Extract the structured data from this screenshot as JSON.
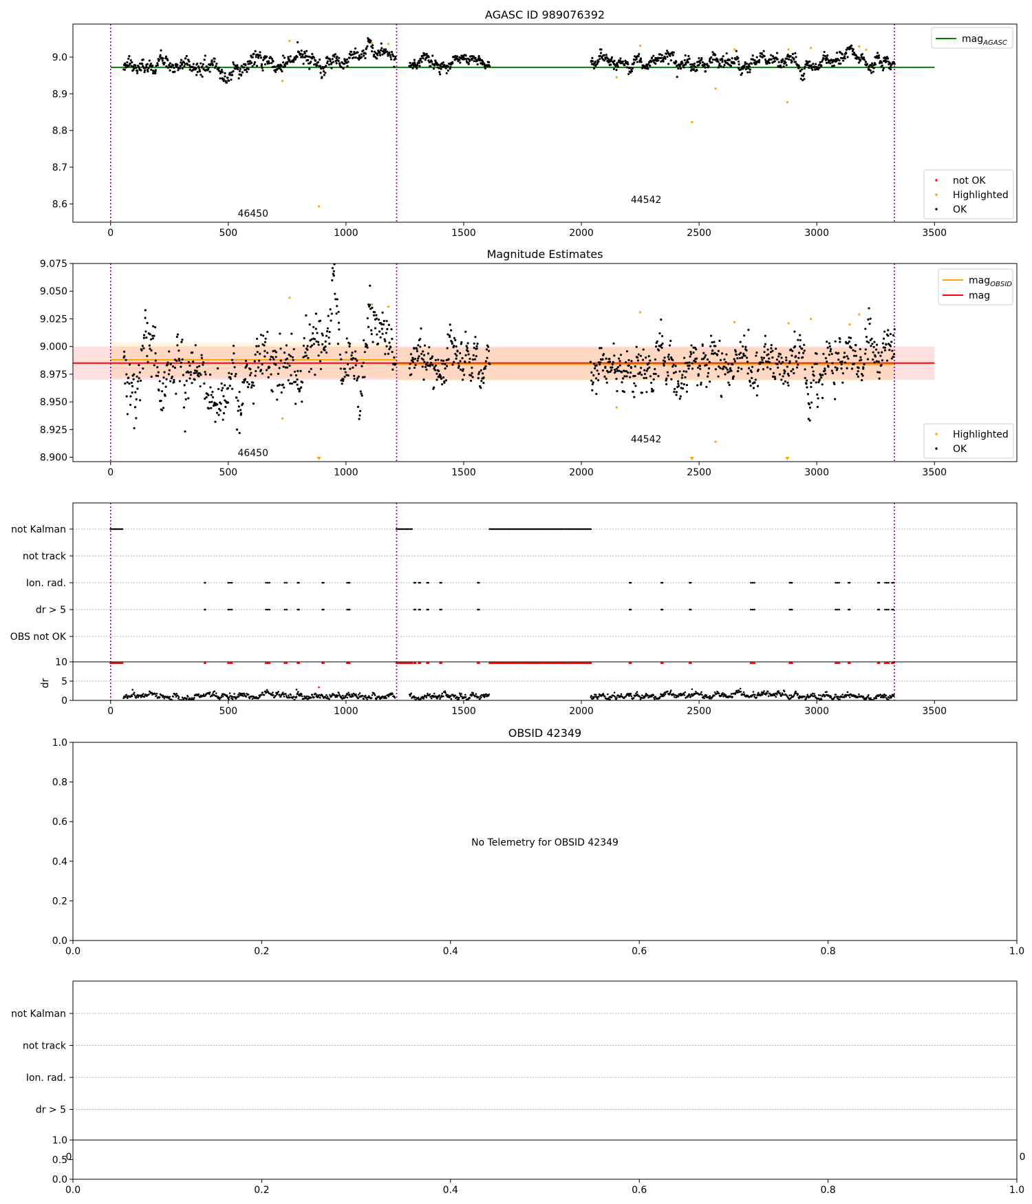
{
  "figure": {
    "obsid_dividers_x": [
      0,
      1215,
      3330
    ],
    "obsid_labels": [
      {
        "text": "46450",
        "x": 605
      },
      {
        "text": "44542",
        "x": 2275
      }
    ]
  },
  "panels": {
    "agasc": {
      "title": "AGASC ID 989076392",
      "legend_lines": [
        {
          "label_main": "mag",
          "label_sub": "AGASC",
          "color": "#008000"
        }
      ],
      "legend_markers": [
        {
          "label": "not OK",
          "color": "#ff0000"
        },
        {
          "label": "Highlighted",
          "color": "#ffa500"
        },
        {
          "label": "OK",
          "color": "#000000"
        }
      ]
    },
    "estimates": {
      "title": "Magnitude Estimates",
      "legend_lines": [
        {
          "label_main": "mag",
          "label_sub": "OBSID",
          "color": "#ffa500"
        },
        {
          "label_main": "mag",
          "label_sub": "",
          "color": "#ff0000"
        }
      ],
      "legend_markers": [
        {
          "label": "Highlighted",
          "color": "#ffa500"
        },
        {
          "label": "OK",
          "color": "#000000"
        }
      ]
    },
    "flags": {
      "row_labels": [
        "not Kalman",
        "not track",
        "Ion. rad.",
        "dr > 5",
        "OBS not OK"
      ]
    },
    "dr": {
      "ylabel": "dr",
      "yticks": [
        "0",
        "5",
        "10"
      ]
    },
    "obsid": {
      "title": "OBSID 42349",
      "message": "No Telemetry for OBSID 42349"
    },
    "flags2": {
      "row_labels": [
        "not Kalman",
        "not track",
        "Ion. rad.",
        "dr > 5"
      ]
    },
    "dr2": {
      "yticks": [
        "0.0",
        "0.5",
        "1.0"
      ],
      "overflow_labels": [
        "0",
        "0"
      ]
    }
  },
  "chart_data": [
    {
      "type": "scatter",
      "title": "AGASC ID 989076392",
      "xlim": [
        -160,
        3850
      ],
      "ylim": [
        8.55,
        9.09
      ],
      "xticks": [
        0,
        500,
        1000,
        1500,
        2000,
        2500,
        3000,
        3500
      ],
      "yticks": [
        8.6,
        8.7,
        8.8,
        8.9,
        9.0
      ],
      "reference_lines": [
        {
          "name": "mag_AGASC",
          "y": 8.972,
          "x": [
            0,
            3500
          ],
          "color": "#008000"
        }
      ],
      "segments": [
        {
          "x": [
            55,
            1210
          ],
          "base": 8.985,
          "amp": 0.022,
          "n": 520,
          "trend": 0.025
        },
        {
          "x": [
            1270,
            1610
          ],
          "base": 8.985,
          "amp": 0.015,
          "n": 170,
          "trend": -0.005
        },
        {
          "x": [
            2040,
            3330
          ],
          "base": 8.985,
          "amp": 0.018,
          "n": 600,
          "trend": 0.005
        }
      ],
      "highlighted": [
        {
          "x": 730,
          "y": 8.935
        },
        {
          "x": 760,
          "y": 9.044
        },
        {
          "x": 885,
          "y": 8.593
        },
        {
          "x": 1110,
          "y": 9.038
        },
        {
          "x": 1180,
          "y": 9.036
        },
        {
          "x": 2150,
          "y": 8.945
        },
        {
          "x": 2250,
          "y": 9.031
        },
        {
          "x": 2470,
          "y": 8.823
        },
        {
          "x": 2570,
          "y": 8.914
        },
        {
          "x": 2650,
          "y": 9.021
        },
        {
          "x": 2875,
          "y": 8.877
        },
        {
          "x": 2880,
          "y": 9.021
        },
        {
          "x": 2975,
          "y": 9.025
        },
        {
          "x": 3180,
          "y": 9.029
        },
        {
          "x": 3210,
          "y": 9.02
        }
      ],
      "not_ok": []
    },
    {
      "type": "scatter",
      "title": "Magnitude Estimates",
      "xlim": [
        -160,
        3850
      ],
      "ylim": [
        8.896,
        9.075
      ],
      "xticks": [
        0,
        500,
        1000,
        1500,
        2000,
        2500,
        3000,
        3500
      ],
      "yticks": [
        8.9,
        8.925,
        8.95,
        8.975,
        9.0,
        9.025,
        9.05,
        9.075
      ],
      "ytick_labels": [
        "8.900",
        "8.925",
        "8.950",
        "8.975",
        "9.000",
        "9.025",
        "9.050",
        "9.075"
      ],
      "reference_lines": [
        {
          "name": "mag",
          "y": 8.985,
          "x": [
            -160,
            3500
          ],
          "color": "#ff0000",
          "band": [
            8.97,
            9.0
          ]
        },
        {
          "name": "mag_OBSID",
          "y": 8.988,
          "x": [
            0,
            1215
          ],
          "color": "#ffa500",
          "band": [
            8.972,
            9.004
          ]
        },
        {
          "name": "mag_OBSID",
          "y": 8.984,
          "x": [
            1215,
            3330
          ],
          "color": "#ffa500",
          "band": [
            8.969,
            8.999
          ]
        }
      ],
      "segments": [
        {
          "x": [
            55,
            1210
          ],
          "base": 8.985,
          "amp": 0.028,
          "n": 520,
          "trend": 0.02
        },
        {
          "x": [
            1270,
            1610
          ],
          "base": 8.983,
          "amp": 0.02,
          "n": 170,
          "trend": -0.005
        },
        {
          "x": [
            2040,
            3330
          ],
          "base": 8.984,
          "amp": 0.022,
          "n": 600,
          "trend": 0.005
        }
      ],
      "highlighted": [
        {
          "x": 730,
          "y": 8.935
        },
        {
          "x": 760,
          "y": 9.044
        },
        {
          "x": 1110,
          "y": 9.038
        },
        {
          "x": 1180,
          "y": 9.036
        },
        {
          "x": 2150,
          "y": 8.945
        },
        {
          "x": 2250,
          "y": 9.031
        },
        {
          "x": 2570,
          "y": 8.914
        },
        {
          "x": 2650,
          "y": 9.022
        },
        {
          "x": 2880,
          "y": 9.021
        },
        {
          "x": 2975,
          "y": 9.025
        },
        {
          "x": 3180,
          "y": 9.029
        },
        {
          "x": 3140,
          "y": 9.02
        }
      ],
      "below_range": [
        {
          "x": 885
        },
        {
          "x": 2470
        },
        {
          "x": 2875
        }
      ]
    },
    {
      "type": "scatter",
      "title": "",
      "xlim": [
        -160,
        3850
      ],
      "xticks": [
        0,
        500,
        1000,
        1500,
        2000,
        2500,
        3000,
        3500
      ],
      "flag_rows": [
        "not Kalman",
        "not track",
        "Ion. rad.",
        "dr > 5",
        "OBS not OK"
      ],
      "flag_ranges": {
        "not Kalman": [
          [
            0,
            50
          ],
          [
            1215,
            1280
          ],
          [
            1610,
            2040
          ]
        ],
        "not track": [],
        "Ion. rad.": [
          [
            400,
            402
          ],
          [
            500,
            515
          ],
          [
            660,
            675
          ],
          [
            740,
            748
          ],
          [
            795,
            800
          ],
          [
            900,
            905
          ],
          [
            1005,
            1015
          ],
          [
            1290,
            1295
          ],
          [
            1310,
            1315
          ],
          [
            1345,
            1350
          ],
          [
            1400,
            1405
          ],
          [
            1560,
            1565
          ],
          [
            2205,
            2210
          ],
          [
            2340,
            2345
          ],
          [
            2460,
            2465
          ],
          [
            2720,
            2735
          ],
          [
            2885,
            2895
          ],
          [
            3080,
            3095
          ],
          [
            3135,
            3140
          ],
          [
            3260,
            3265
          ],
          [
            3290,
            3305
          ],
          [
            3320,
            3325
          ]
        ],
        "dr > 5": [
          [
            400,
            402
          ],
          [
            500,
            515
          ],
          [
            660,
            675
          ],
          [
            740,
            748
          ],
          [
            795,
            800
          ],
          [
            900,
            905
          ],
          [
            1005,
            1015
          ],
          [
            1290,
            1295
          ],
          [
            1310,
            1315
          ],
          [
            1345,
            1350
          ],
          [
            1400,
            1405
          ],
          [
            1560,
            1565
          ],
          [
            2205,
            2210
          ],
          [
            2340,
            2345
          ],
          [
            2460,
            2465
          ],
          [
            2720,
            2735
          ],
          [
            2885,
            2895
          ],
          [
            3080,
            3095
          ],
          [
            3135,
            3140
          ],
          [
            3260,
            3265
          ],
          [
            3290,
            3305
          ],
          [
            3320,
            3325
          ]
        ],
        "OBS not OK": []
      },
      "dr_ylim": [
        0,
        10
      ],
      "dr_yticks": [
        0,
        5,
        10
      ],
      "dr_segments": [
        [
          55,
          1210
        ],
        [
          1270,
          1610
        ],
        [
          2040,
          3330
        ]
      ],
      "dr_outliers": [
        {
          "x": 885,
          "y": 3.4
        },
        {
          "x": 790,
          "y": 2.8
        },
        {
          "x": 2470,
          "y": 2.9
        }
      ]
    },
    {
      "type": "scatter",
      "title": "OBSID 42349",
      "xlim": [
        0,
        1
      ],
      "ylim": [
        0,
        1
      ],
      "xticks": [
        0.0,
        0.2,
        0.4,
        0.6,
        0.8,
        1.0
      ],
      "xtick_labels": [
        "0.0",
        "0.2",
        "0.4",
        "0.6",
        "0.8",
        "1.0"
      ],
      "yticks": [
        0.0,
        0.2,
        0.4,
        0.6,
        0.8,
        1.0
      ],
      "ytick_labels": [
        "0.0",
        "0.2",
        "0.4",
        "0.6",
        "0.8",
        "1.0"
      ],
      "annotation": "No Telemetry for OBSID 42349"
    },
    {
      "type": "scatter",
      "title": "",
      "xlim": [
        0,
        1
      ],
      "flag_rows": [
        "not Kalman",
        "not track",
        "Ion. rad.",
        "dr > 5"
      ],
      "dr_ylim": [
        0,
        1
      ],
      "dr_yticks": [
        0.0,
        0.5,
        1.0
      ],
      "xticks": [
        0.0,
        0.2,
        0.4,
        0.6,
        0.8,
        1.0
      ],
      "xtick_labels": [
        "0.0",
        "0.2",
        "0.4",
        "0.6",
        "0.8",
        "1.0"
      ]
    }
  ]
}
